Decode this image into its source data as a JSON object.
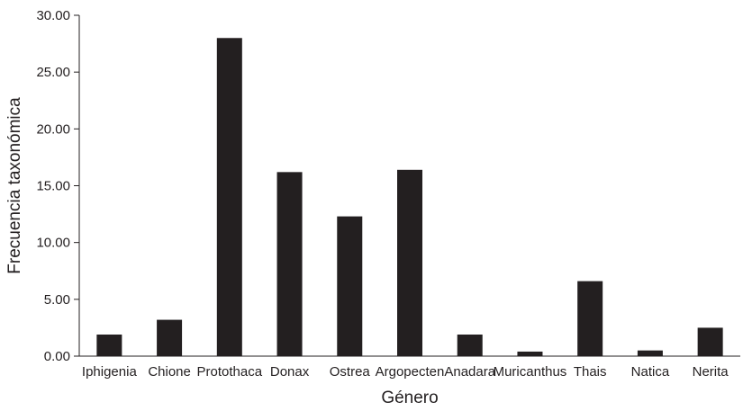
{
  "chart_data": {
    "type": "bar",
    "title": "",
    "xlabel": "Género",
    "ylabel": "Frecuencia taxonómica",
    "ylim": [
      0,
      30
    ],
    "yticks": [
      "0.00",
      "5.00",
      "10.00",
      "15.00",
      "20.00",
      "25.00",
      "30.00"
    ],
    "categories": [
      "Iphigenia",
      "Chione",
      "Protothaca",
      "Donax",
      "Ostrea",
      "Argopecten",
      "Anadara",
      "Muricanthus",
      "Thais",
      "Natica",
      "Nerita"
    ],
    "values": [
      1.9,
      3.2,
      28.0,
      16.2,
      12.3,
      16.4,
      1.9,
      0.4,
      6.6,
      0.5,
      2.5
    ],
    "grid": false,
    "legend": "none",
    "bar_color": "#231f20"
  }
}
